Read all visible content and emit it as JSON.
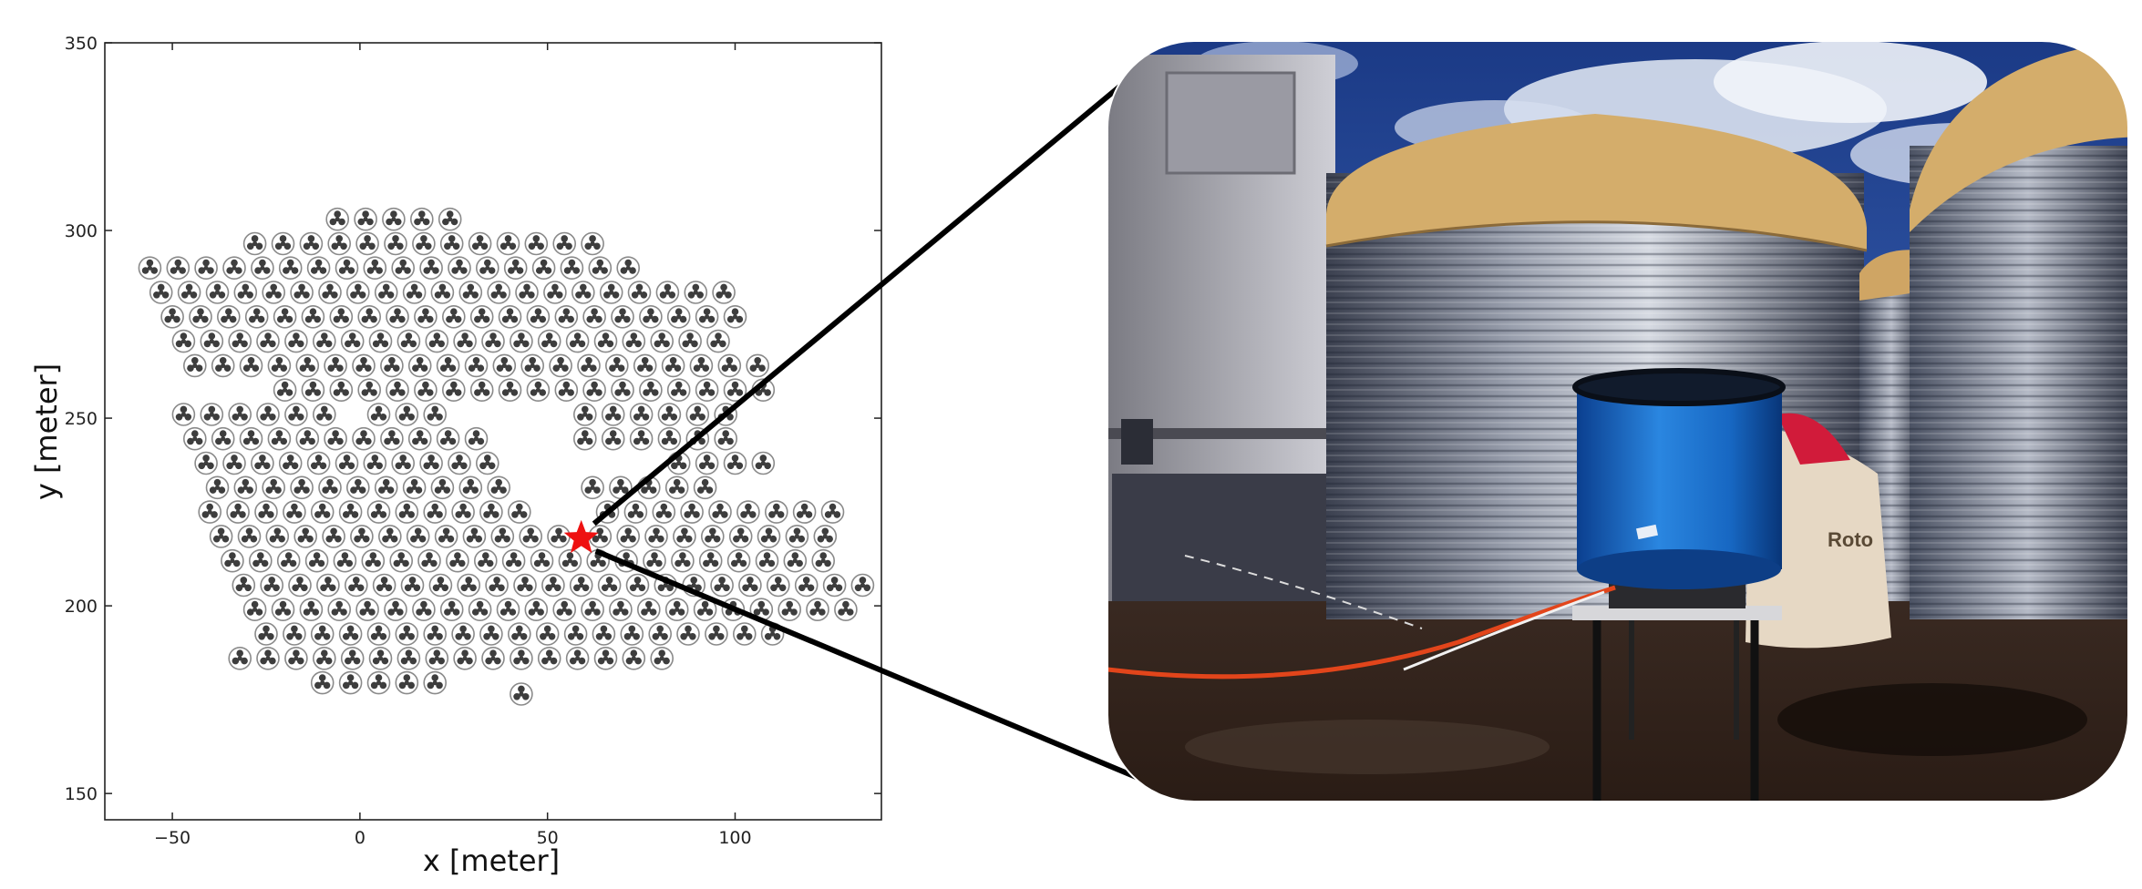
{
  "chart_data": {
    "type": "scatter",
    "title": "",
    "xlabel": "x [meter]",
    "ylabel": "y [meter]",
    "xlim": [
      -68,
      139
    ],
    "ylim": [
      143,
      350
    ],
    "xticks": [
      -50,
      0,
      50,
      100
    ],
    "xtick_labels": [
      "−50",
      "0",
      "50",
      "100"
    ],
    "yticks": [
      150,
      200,
      250,
      300,
      350
    ],
    "ytick_labels": [
      "150",
      "200",
      "250",
      "300",
      "350"
    ],
    "grid": false,
    "legend": "none",
    "series": [
      {
        "marker": "circled-trefoil",
        "spacing_m": 7.5,
        "rows": [
          {
            "y": 303,
            "x_start": -6,
            "count": 5
          },
          {
            "y": 296.5,
            "x_start": -28,
            "count": 13
          },
          {
            "y": 290,
            "x_start": -56,
            "count": 18
          },
          {
            "y": 283.5,
            "x_start": -53,
            "count": 21
          },
          {
            "y": 277,
            "x_start": -50,
            "count": 21
          },
          {
            "y": 270.5,
            "x_start": -47,
            "count": 20
          },
          {
            "y": 264,
            "x_start": -44,
            "count": 21
          },
          {
            "y": 257.5,
            "x_start": -20,
            "count": 18
          },
          {
            "y": 251,
            "x_start": -47,
            "count": 6
          },
          {
            "y": 251,
            "x_start": 5,
            "count": 3
          },
          {
            "y": 251,
            "x_start": 60,
            "count": 6
          },
          {
            "y": 244.5,
            "x_start": -44,
            "count": 11
          },
          {
            "y": 244.5,
            "x_start": 60,
            "count": 6
          },
          {
            "y": 238,
            "x_start": -41,
            "count": 11
          },
          {
            "y": 238,
            "x_start": 85,
            "count": 4
          },
          {
            "y": 231.5,
            "x_start": -38,
            "count": 11
          },
          {
            "y": 231.5,
            "x_start": 62,
            "count": 5
          },
          {
            "y": 225,
            "x_start": -40,
            "count": 12
          },
          {
            "y": 225,
            "x_start": 66,
            "count": 9
          },
          {
            "y": 218.5,
            "x_start": -37,
            "count": 13
          },
          {
            "y": 218.5,
            "x_start": 64,
            "count": 9
          },
          {
            "y": 212,
            "x_start": -34,
            "count": 22
          },
          {
            "y": 205.5,
            "x_start": -31,
            "count": 23
          },
          {
            "y": 199,
            "x_start": -28,
            "count": 22
          },
          {
            "y": 192.5,
            "x_start": -25,
            "count": 19
          },
          {
            "y": 186,
            "x_start": -32,
            "count": 16
          },
          {
            "y": 179.5,
            "x_start": -10,
            "count": 5
          },
          {
            "y": 176.5,
            "x_start": 43,
            "count": 1
          }
        ]
      }
    ],
    "highlight": {
      "marker": "star",
      "x": 59,
      "y": 218,
      "color": "#ee1111"
    }
  },
  "colors": {
    "marker_ring": "#8a8a8a",
    "marker_fill": "#3d3d3d",
    "star": "#ee1111",
    "zoom_lines": "#000000"
  },
  "photo": {
    "subject": "blue cylindrical detector tank on a folding table in front of corrugated steel water tanks",
    "visible_text": "Roto"
  }
}
